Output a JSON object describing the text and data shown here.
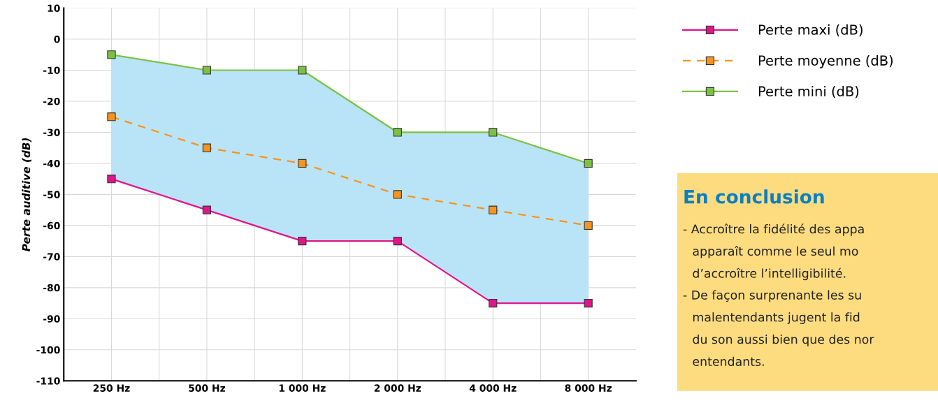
{
  "chart_data": {
    "type": "line",
    "ylabel": "Perte auditive (dB)",
    "categories": [
      "250 Hz",
      "500 Hz",
      "1 000 Hz",
      "2 000 Hz",
      "4 000 Hz",
      "8 000 Hz"
    ],
    "series": [
      {
        "name": "Perte maxi (dB)",
        "color": "#e0158a",
        "values": [
          -45,
          -55,
          -65,
          -65,
          -85,
          -85
        ],
        "line_style": "solid"
      },
      {
        "name": "Perte moyenne (dB)",
        "color": "#f7941d",
        "values": [
          -25,
          -35,
          -40,
          -50,
          -55,
          -60
        ],
        "line_style": "dashed",
        "lower": [
          -45,
          -55,
          -65,
          -65,
          -85,
          -85
        ],
        "upper": [
          -5,
          -10,
          -10,
          -30,
          -30,
          -40
        ]
      },
      {
        "name": "Perte mini (dB)",
        "color": "#7cc242",
        "values": [
          -5,
          -10,
          -10,
          -30,
          -30,
          -40
        ],
        "line_style": "solid"
      }
    ],
    "ylim": [
      -110,
      10
    ],
    "yticks": [
      -110,
      -100,
      -90,
      -80,
      -70,
      -60,
      -50,
      -40,
      -30,
      -20,
      -10,
      0,
      10
    ],
    "grid": true,
    "legend": "top right",
    "marker": "square",
    "annotations": [
      "En conclusion",
      "- Accroître la fidélité des appa",
      "apparaît comme le seul mo",
      "d’accroître l’intelligibilité.",
      "- De façon surprenante les su",
      "malentendants jugent la fid",
      "du son aussi bien que des nor",
      "entendants."
    ]
  }
}
